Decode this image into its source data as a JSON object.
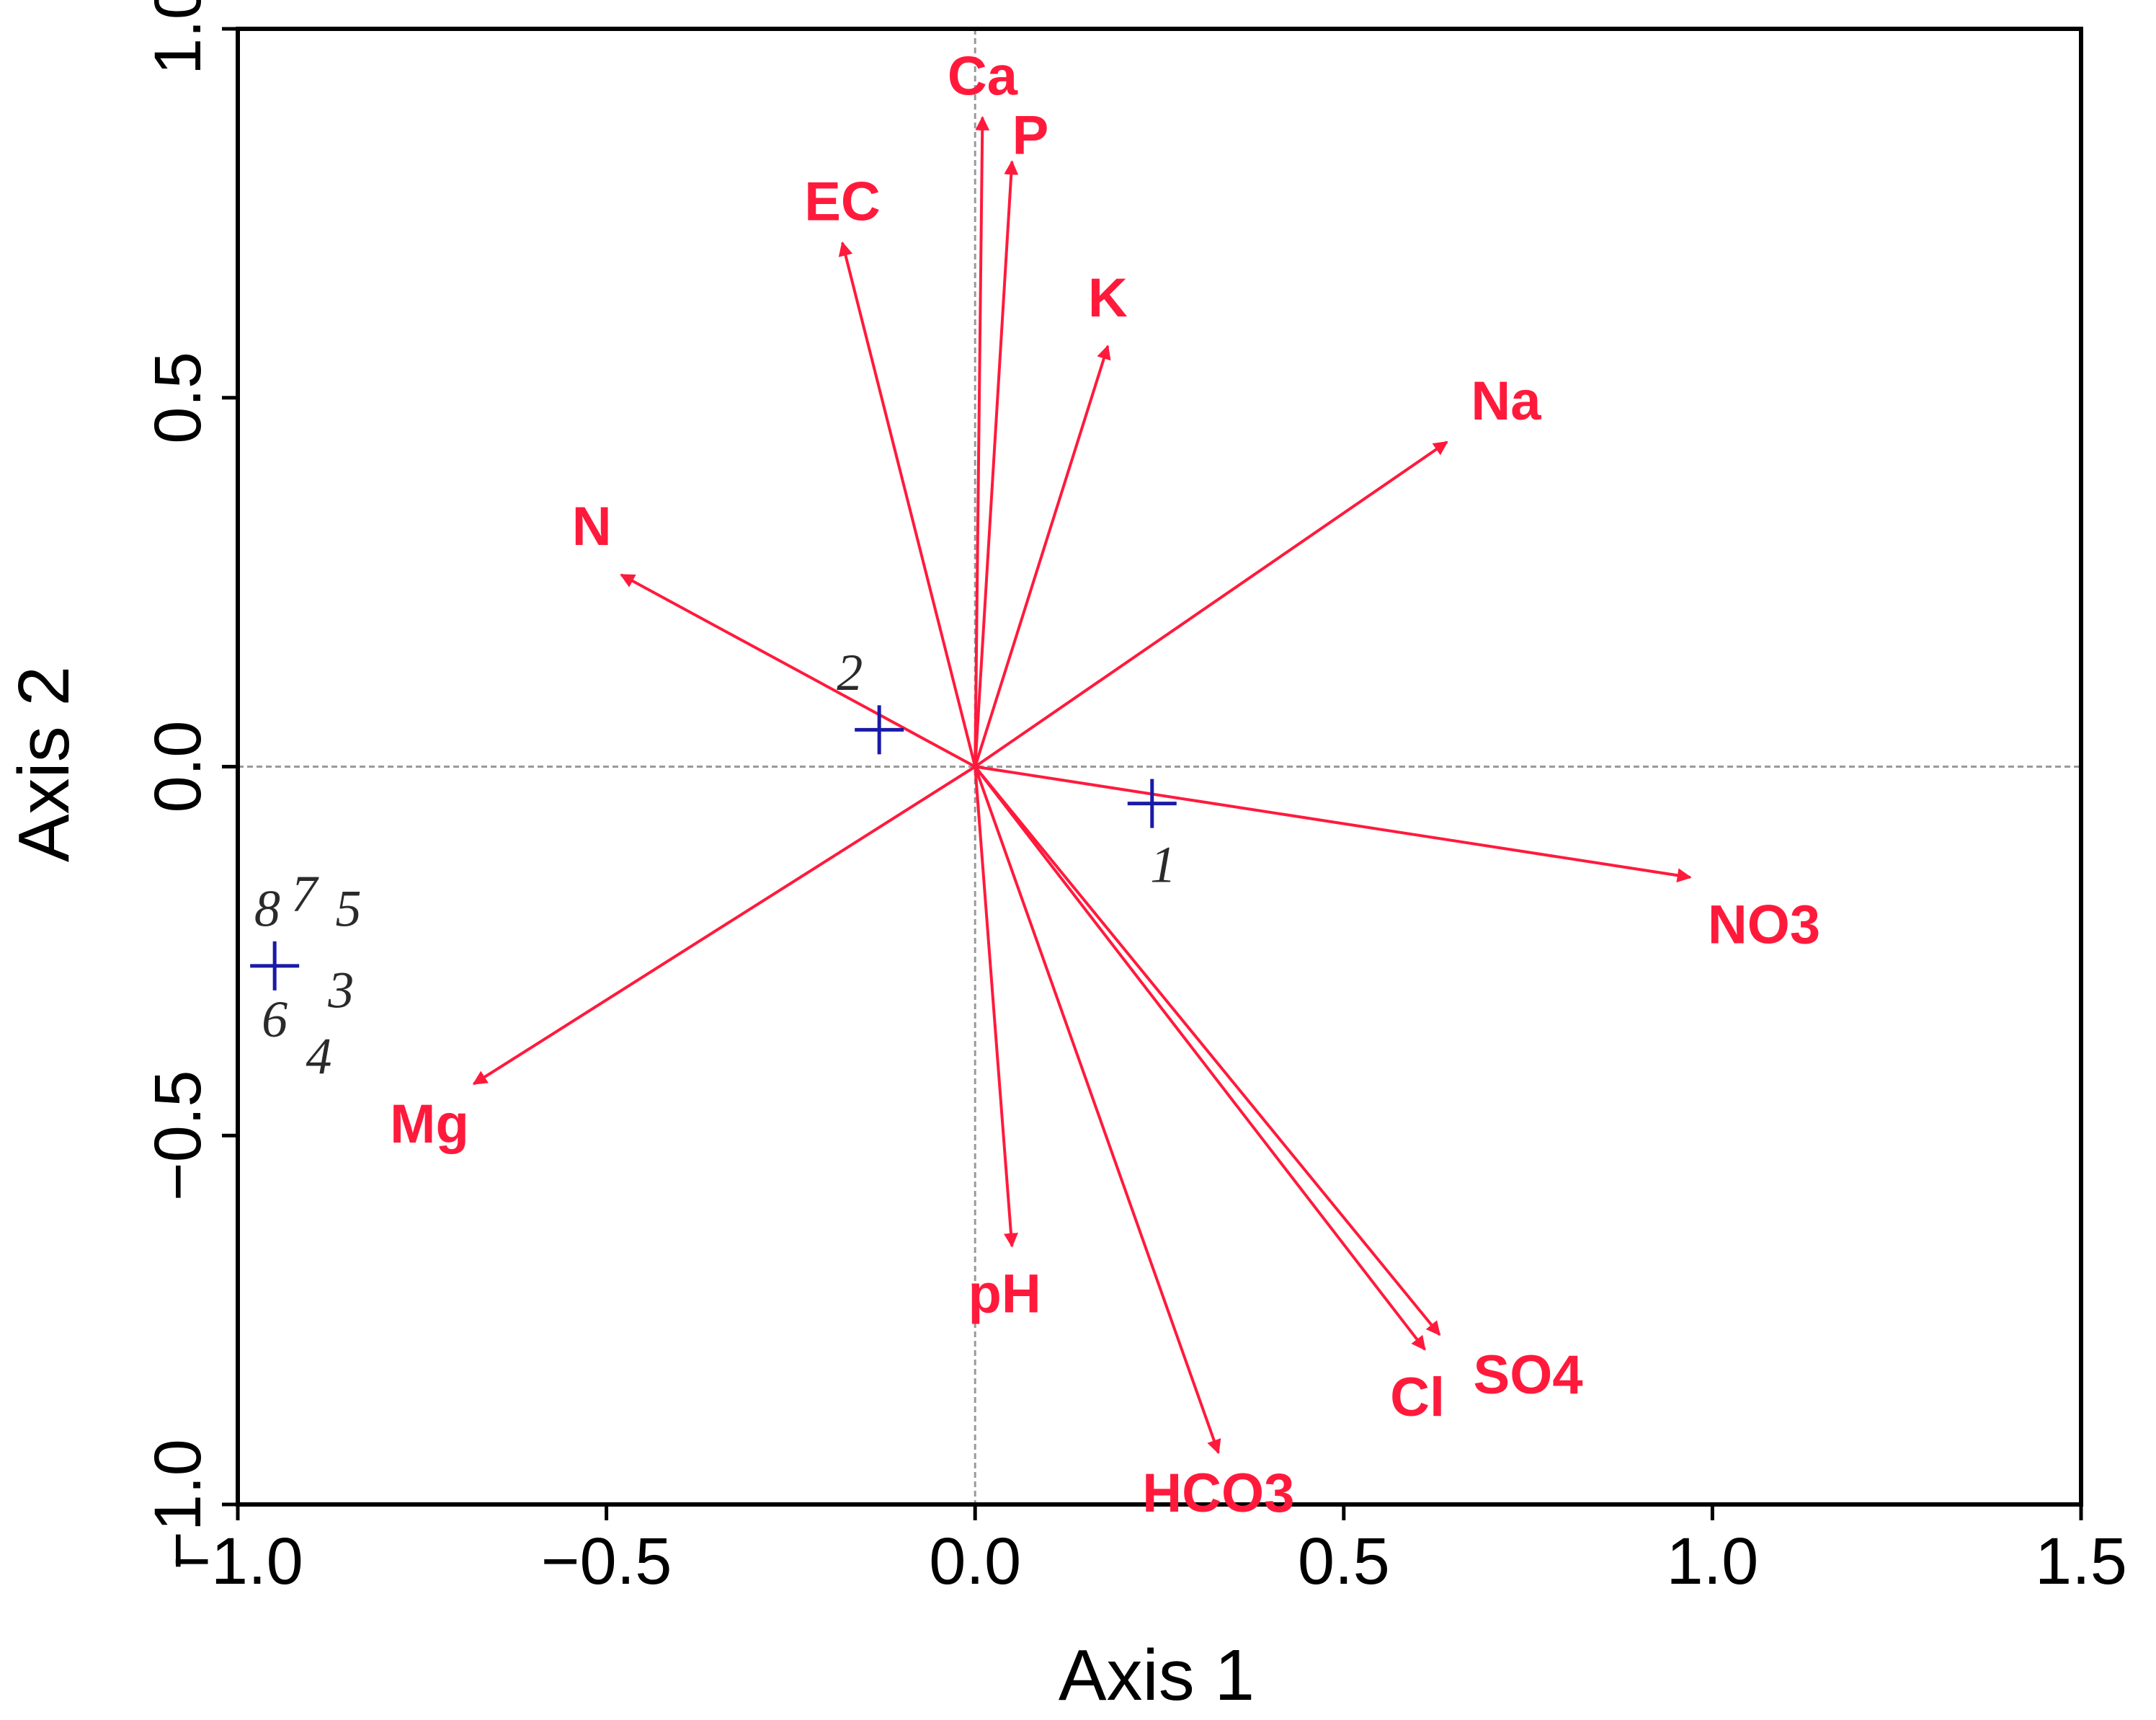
{
  "chart_data": {
    "type": "scatter",
    "title": "",
    "xlabel": "Axis 1",
    "ylabel": "Axis 2",
    "xlim": [
      -1.0,
      1.5
    ],
    "ylim": [
      -1.0,
      1.0
    ],
    "xticks": [
      {
        "value": -1.0,
        "label": "−1.0"
      },
      {
        "value": -0.5,
        "label": "−0.5"
      },
      {
        "value": 0.0,
        "label": "0.0"
      },
      {
        "value": 0.5,
        "label": "0.5"
      },
      {
        "value": 1.0,
        "label": "1.0"
      },
      {
        "value": 1.5,
        "label": "1.5"
      }
    ],
    "yticks": [
      {
        "value": -1.0,
        "label": "−1.0"
      },
      {
        "value": -0.5,
        "label": "−0.5"
      },
      {
        "value": 0.0,
        "label": "0.0"
      },
      {
        "value": 0.5,
        "label": "0.5"
      },
      {
        "value": 1.0,
        "label": "1.0"
      }
    ],
    "zero_lines": true,
    "vector_color": "#ff1a3c",
    "site_color": "#1a1aa8",
    "vectors": [
      {
        "name": "Ca",
        "x": 0.01,
        "y": 0.88,
        "label_x": 0.01,
        "label_y": 0.93
      },
      {
        "name": "P",
        "x": 0.05,
        "y": 0.82,
        "label_x": 0.075,
        "label_y": 0.85
      },
      {
        "name": "EC",
        "x": -0.18,
        "y": 0.71,
        "label_x": -0.18,
        "label_y": 0.76
      },
      {
        "name": "K",
        "x": 0.18,
        "y": 0.57,
        "label_x": 0.18,
        "label_y": 0.63
      },
      {
        "name": "Na",
        "x": 0.64,
        "y": 0.44,
        "label_x": 0.72,
        "label_y": 0.49
      },
      {
        "name": "N",
        "x": -0.48,
        "y": 0.26,
        "label_x": -0.52,
        "label_y": 0.32
      },
      {
        "name": "NO3",
        "x": 0.97,
        "y": -0.15,
        "label_x": 1.07,
        "label_y": -0.22
      },
      {
        "name": "Mg",
        "x": -0.68,
        "y": -0.43,
        "label_x": -0.74,
        "label_y": -0.49
      },
      {
        "name": "pH",
        "x": 0.05,
        "y": -0.65,
        "label_x": 0.04,
        "label_y": -0.72
      },
      {
        "name": "Cl",
        "x": 0.61,
        "y": -0.79,
        "label_x": 0.6,
        "label_y": -0.86
      },
      {
        "name": "SO4",
        "x": 0.63,
        "y": -0.77,
        "label_x": 0.75,
        "label_y": -0.83
      },
      {
        "name": "HCO3",
        "x": 0.33,
        "y": -0.93,
        "label_x": 0.33,
        "label_y": -0.99
      }
    ],
    "sites": [
      {
        "name": "site-2",
        "x": -0.13,
        "y": 0.05,
        "labels": [
          {
            "text": "2",
            "x": -0.17,
            "y": 0.12
          }
        ]
      },
      {
        "name": "site-1",
        "x": 0.24,
        "y": -0.05,
        "labels": [
          {
            "text": "1",
            "x": 0.255,
            "y": -0.14
          }
        ]
      },
      {
        "name": "site-3-8",
        "x": -0.95,
        "y": -0.27,
        "labels": [
          {
            "text": "8",
            "x": -0.96,
            "y": -0.2
          },
          {
            "text": "7",
            "x": -0.91,
            "y": -0.18
          },
          {
            "text": "5",
            "x": -0.85,
            "y": -0.2
          },
          {
            "text": "3",
            "x": -0.86,
            "y": -0.31
          },
          {
            "text": "6",
            "x": -0.95,
            "y": -0.35
          },
          {
            "text": "4",
            "x": -0.89,
            "y": -0.4
          }
        ]
      }
    ]
  }
}
